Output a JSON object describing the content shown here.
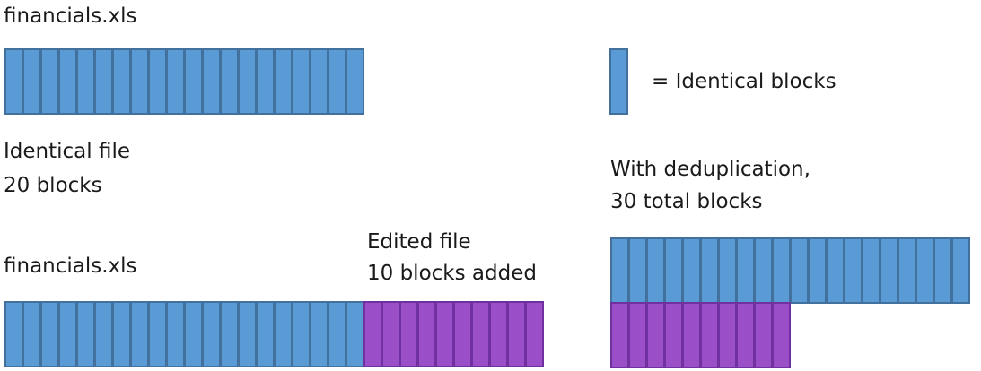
{
  "colors": {
    "identical_fill": "#5B9BD5",
    "identical_edge": "#41719C",
    "added_fill": "#9A4FC8",
    "added_edge": "#7030A0"
  },
  "original_file": {
    "title": "financials.xls",
    "block_count": 20,
    "caption_line1": "Identical file",
    "caption_line2": "20 blocks"
  },
  "edited_file": {
    "title": "financials.xls",
    "identical_block_count": 20,
    "added_block_count": 10,
    "caption_line1": "Edited file",
    "caption_line2": "10 blocks added"
  },
  "legend": {
    "text": "= Identical blocks"
  },
  "deduplication": {
    "caption_line1": "With deduplication,",
    "caption_line2": "30 total blocks",
    "identical_block_count": 20,
    "added_block_count": 10
  }
}
